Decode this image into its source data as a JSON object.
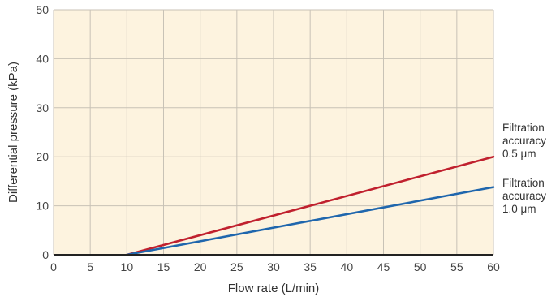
{
  "chart_data": {
    "type": "line",
    "xlabel": "Flow rate (L/min)",
    "ylabel": "Differential pressure (kPa)",
    "xlim": [
      0,
      60
    ],
    "ylim": [
      0,
      50
    ],
    "x_ticks": [
      0,
      5,
      10,
      15,
      20,
      25,
      30,
      35,
      40,
      45,
      50,
      55,
      60
    ],
    "y_ticks": [
      0,
      10,
      20,
      30,
      40,
      50
    ],
    "grid": true,
    "background": "#fdf3df",
    "grid_color": "#c8c2b6",
    "series": [
      {
        "name_lines": [
          "Filtration",
          "accuracy",
          "0.5 μm"
        ],
        "color": "#c0202e",
        "x": [
          10,
          60
        ],
        "y": [
          0,
          20
        ]
      },
      {
        "name_lines": [
          "Filtration",
          "accuracy",
          "1.0 μm"
        ],
        "color": "#1f66ad",
        "x": [
          10,
          60
        ],
        "y": [
          0,
          13.8
        ]
      }
    ],
    "legend_placement": "right"
  }
}
